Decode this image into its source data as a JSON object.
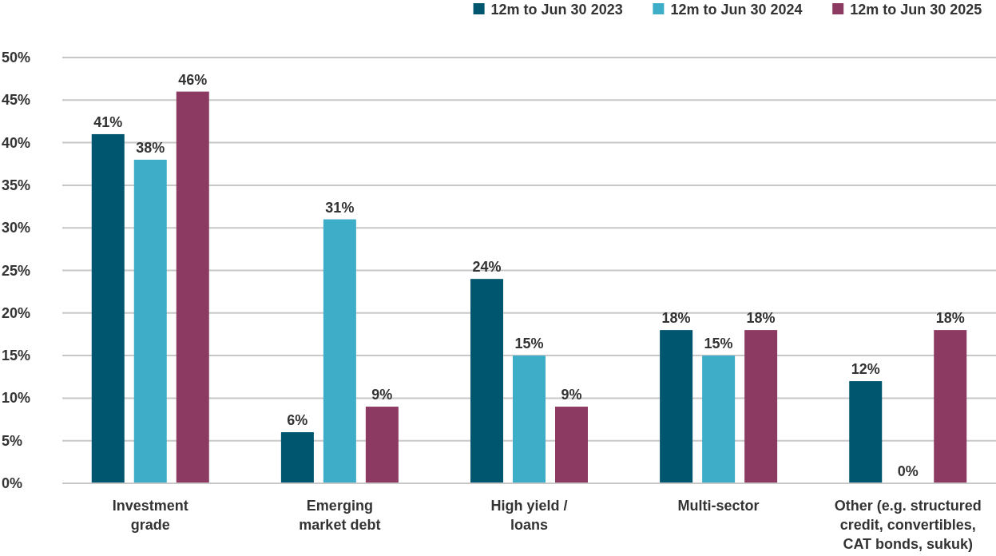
{
  "chart_data": {
    "type": "bar",
    "categories": [
      "Investment grade",
      "Emerging market debt",
      "High yield / loans",
      "Multi-sector",
      "Other (e.g. structured credit, convertibles, CAT bonds, sukuk)"
    ],
    "series": [
      {
        "name": "12m to Jun 30 2023",
        "color": "#00566e",
        "values": [
          41,
          6,
          24,
          18,
          12
        ],
        "value_labels": [
          "41%",
          "6%",
          "24%",
          "18%",
          "12%"
        ]
      },
      {
        "name": "12m to Jun 30 2024",
        "color": "#3eaec8",
        "values": [
          38,
          31,
          15,
          15,
          0
        ],
        "value_labels": [
          "38%",
          "31%",
          "15%",
          "15%",
          "0%"
        ]
      },
      {
        "name": "12m to Jun 30 2025",
        "color": "#8c3a62",
        "values": [
          46,
          9,
          9,
          18,
          18
        ],
        "value_labels": [
          "46%",
          "9%",
          "9%",
          "18%",
          "18%"
        ]
      }
    ],
    "ylim": [
      0,
      50
    ],
    "yticks": [
      {
        "value": 0,
        "label": "0%"
      },
      {
        "value": 5,
        "label": "5%"
      },
      {
        "value": 10,
        "label": "10%"
      },
      {
        "value": 15,
        "label": "15%"
      },
      {
        "value": 20,
        "label": "20%"
      },
      {
        "value": 25,
        "label": "25%"
      },
      {
        "value": 30,
        "label": "30%"
      },
      {
        "value": 35,
        "label": "35%"
      },
      {
        "value": 40,
        "label": "40%"
      },
      {
        "value": 45,
        "label": "45%"
      },
      {
        "value": 50,
        "label": "50%"
      }
    ],
    "grid": "y",
    "legend": "top right"
  }
}
